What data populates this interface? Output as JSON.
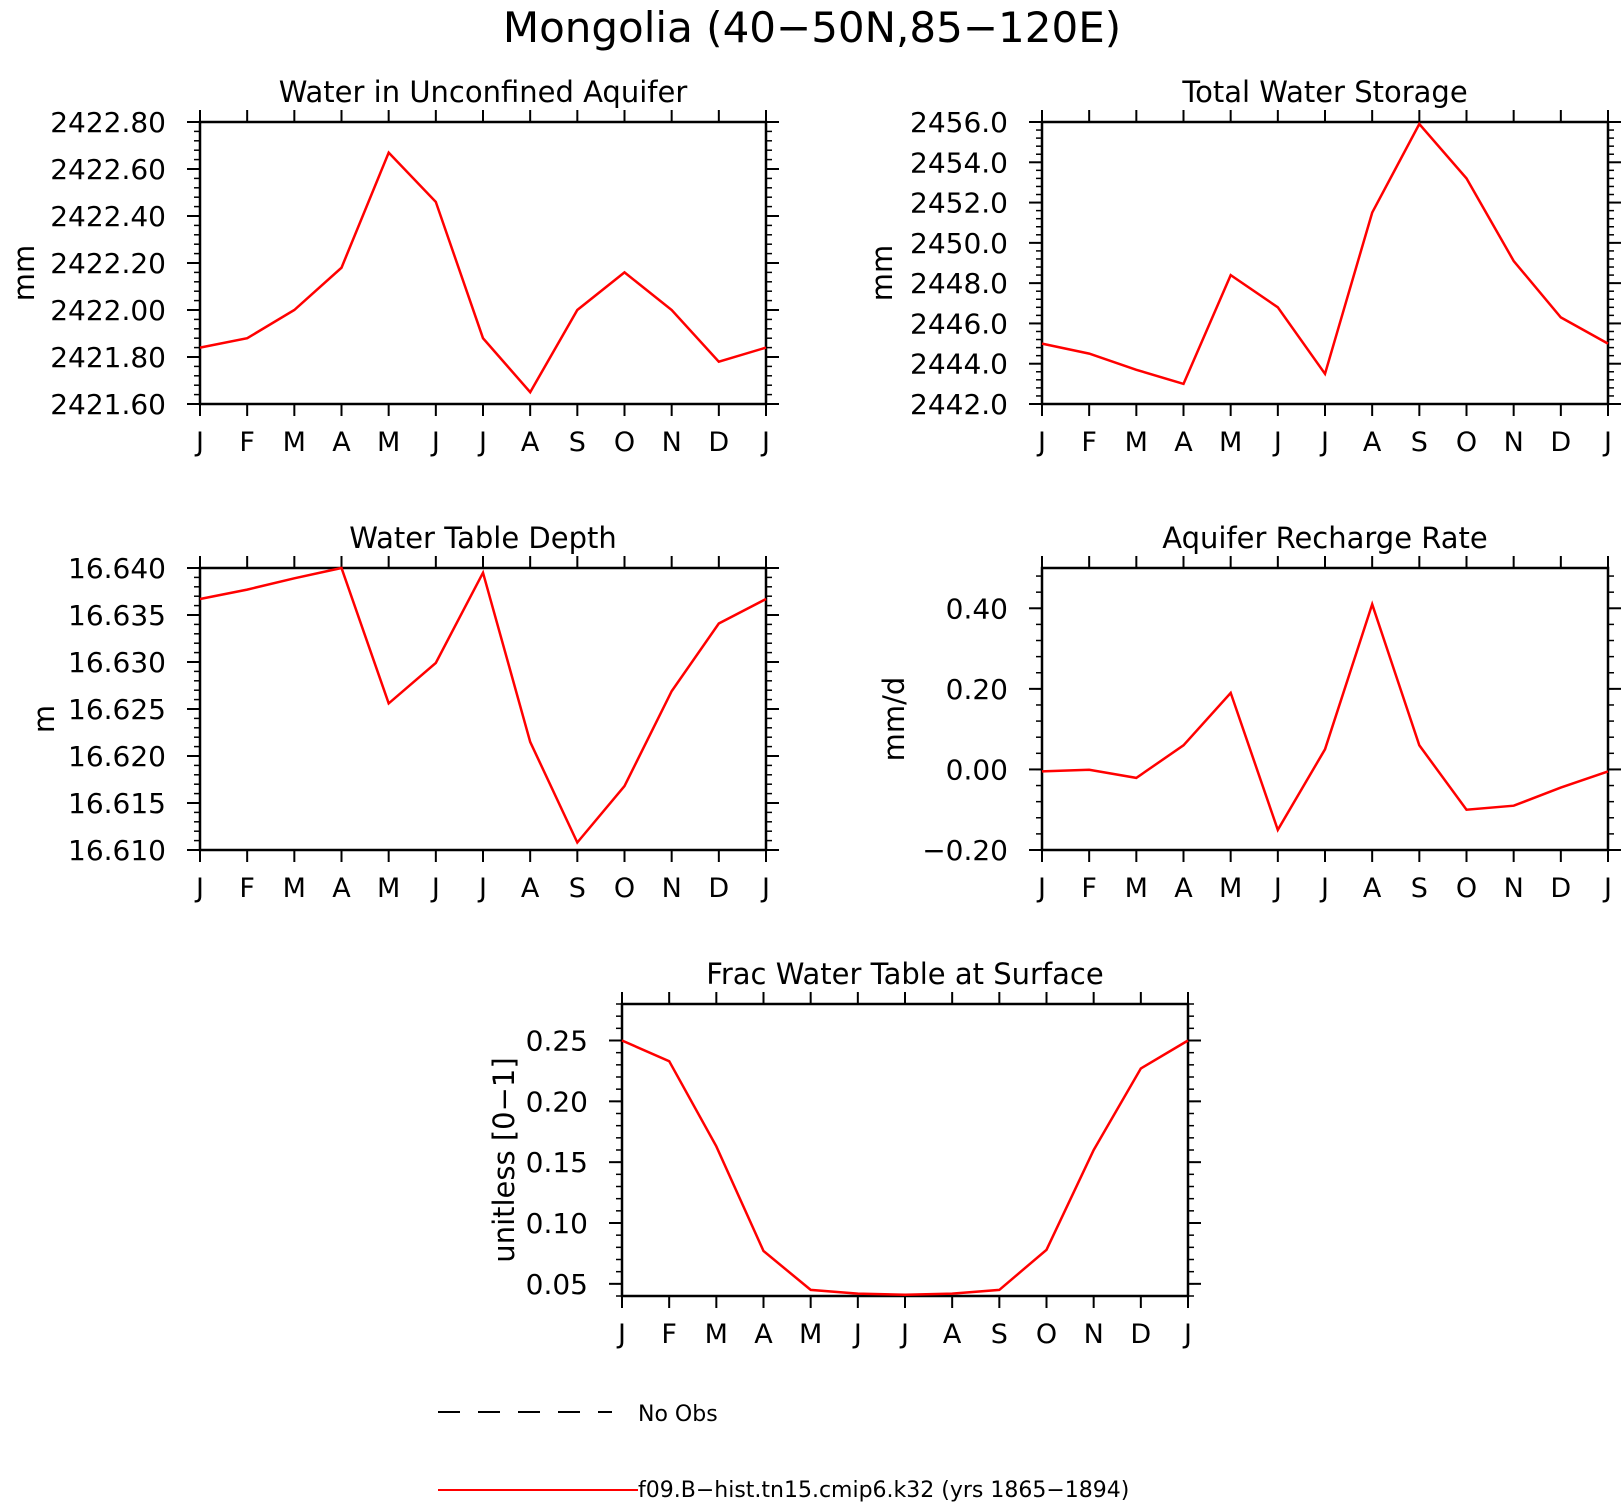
{
  "figure": {
    "title": "Mongolia (40−50N,85−120E)"
  },
  "legend": {
    "entries": [
      {
        "label": "No Obs",
        "style": "dashed",
        "color": "#000000"
      },
      {
        "label": "f09.B−hist.tn15.cmip6.k32 (yrs 1865−1894)",
        "style": "solid",
        "color": "#ff0000"
      }
    ]
  },
  "chart_data": [
    {
      "id": "p1",
      "type": "line",
      "title": "Water in Unconfined Aquifer",
      "ylabel": "mm",
      "categories": [
        "J",
        "F",
        "M",
        "A",
        "M",
        "J",
        "J",
        "A",
        "S",
        "O",
        "N",
        "D",
        "J"
      ],
      "ylim": [
        2421.6,
        2422.8
      ],
      "yticks": [
        2421.6,
        2421.8,
        2422.0,
        2422.2,
        2422.4,
        2422.6,
        2422.8
      ],
      "ytick_labels": [
        "2421.60",
        "2421.80",
        "2422.00",
        "2422.20",
        "2422.40",
        "2422.60",
        "2422.80"
      ],
      "series": [
        {
          "color": "#ff0000",
          "values": [
            2421.84,
            2421.88,
            2422.0,
            2422.18,
            2422.67,
            2422.46,
            2421.88,
            2421.65,
            2422.0,
            2422.16,
            2422.0,
            2421.78,
            2421.84
          ]
        }
      ]
    },
    {
      "id": "p2",
      "type": "line",
      "title": "Total Water Storage",
      "ylabel": "mm",
      "categories": [
        "J",
        "F",
        "M",
        "A",
        "M",
        "J",
        "J",
        "A",
        "S",
        "O",
        "N",
        "D",
        "J"
      ],
      "ylim": [
        2442.0,
        2456.0
      ],
      "yticks": [
        2442,
        2444,
        2446,
        2448,
        2450,
        2452,
        2454,
        2456
      ],
      "ytick_labels": [
        "2442.0",
        "2444.0",
        "2446.0",
        "2448.0",
        "2450.0",
        "2452.0",
        "2454.0",
        "2456.0"
      ],
      "series": [
        {
          "color": "#ff0000",
          "values": [
            2445.0,
            2444.5,
            2443.7,
            2443.0,
            2448.4,
            2446.8,
            2443.5,
            2451.5,
            2455.9,
            2453.2,
            2449.1,
            2446.3,
            2445.0
          ]
        }
      ]
    },
    {
      "id": "p3",
      "type": "line",
      "title": "Water Table Depth",
      "ylabel": "m",
      "categories": [
        "J",
        "F",
        "M",
        "A",
        "M",
        "J",
        "J",
        "A",
        "S",
        "O",
        "N",
        "D",
        "J"
      ],
      "ylim": [
        16.61,
        16.64
      ],
      "yticks": [
        16.61,
        16.615,
        16.62,
        16.625,
        16.63,
        16.635,
        16.64
      ],
      "ytick_labels": [
        "16.610",
        "16.615",
        "16.620",
        "16.625",
        "16.630",
        "16.635",
        "16.640"
      ],
      "series": [
        {
          "color": "#ff0000",
          "values": [
            16.6367,
            16.6377,
            16.6389,
            16.64,
            16.6256,
            16.6299,
            16.6395,
            16.6215,
            16.6108,
            16.6168,
            16.6269,
            16.6341,
            16.6367
          ]
        }
      ]
    },
    {
      "id": "p4",
      "type": "line",
      "title": "Aquifer Recharge Rate",
      "ylabel": "mm/d",
      "categories": [
        "J",
        "F",
        "M",
        "A",
        "M",
        "J",
        "J",
        "A",
        "S",
        "O",
        "N",
        "D",
        "J"
      ],
      "ylim": [
        -0.2,
        0.5
      ],
      "yticks": [
        -0.2,
        0.0,
        0.2,
        0.4
      ],
      "ytick_labels": [
        "−0.20",
        "0.00",
        "0.20",
        "0.40"
      ],
      "series": [
        {
          "color": "#ff0000",
          "values": [
            -0.005,
            -0.001,
            -0.021,
            0.06,
            0.19,
            -0.15,
            0.05,
            0.41,
            0.06,
            -0.1,
            -0.09,
            -0.045,
            -0.005
          ]
        }
      ]
    },
    {
      "id": "p5",
      "type": "line",
      "title": "Frac Water Table at Surface",
      "ylabel": "unitless [0−1]",
      "categories": [
        "J",
        "F",
        "M",
        "A",
        "M",
        "J",
        "J",
        "A",
        "S",
        "O",
        "N",
        "D",
        "J"
      ],
      "ylim": [
        0.04,
        0.28
      ],
      "yticks": [
        0.05,
        0.1,
        0.15,
        0.2,
        0.25
      ],
      "ytick_labels": [
        "0.05",
        "0.10",
        "0.15",
        "0.20",
        "0.25"
      ],
      "series": [
        {
          "color": "#ff0000",
          "values": [
            0.25,
            0.233,
            0.163,
            0.077,
            0.045,
            0.042,
            0.041,
            0.042,
            0.045,
            0.078,
            0.16,
            0.227,
            0.25
          ]
        }
      ]
    }
  ]
}
